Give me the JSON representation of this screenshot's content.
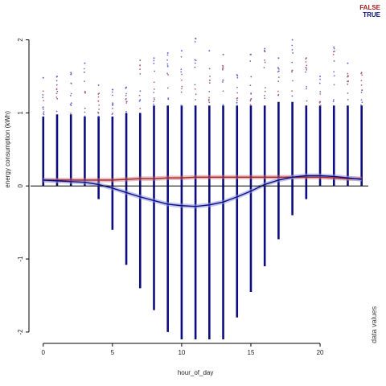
{
  "legend": [
    {
      "label": "FALSE",
      "color": "#a31f1f"
    },
    {
      "label": "TRUE",
      "color": "#0d0d80"
    }
  ],
  "side_label": "data values",
  "chart_data": {
    "type": "scatter",
    "title": "",
    "xlabel": "hour_of_day",
    "ylabel": "energy consumption (kWh)",
    "xlim": [
      -0.8,
      23.6
    ],
    "ylim": [
      -2.1,
      2.05
    ],
    "x_ticks": [
      0,
      5,
      10,
      15,
      20
    ],
    "y_ticks": [
      -2,
      -1,
      0,
      1,
      2
    ],
    "y_tick_labels": [
      "-2",
      "-1",
      "0",
      "1",
      "2"
    ],
    "reference_line_y": 0,
    "hour_ranges": {
      "hours": [
        0,
        1,
        2,
        3,
        4,
        5,
        6,
        7,
        8,
        9,
        10,
        11,
        12,
        13,
        14,
        15,
        16,
        17,
        18,
        19,
        20,
        21,
        22,
        23
      ],
      "min": [
        0.0,
        0.0,
        0.0,
        0.0,
        -0.18,
        -0.6,
        -1.08,
        -1.4,
        -1.7,
        -2.0,
        -2.1,
        -2.1,
        -2.1,
        -2.1,
        -1.8,
        -1.45,
        -1.1,
        -0.73,
        -0.4,
        -0.18,
        0.0,
        0.0,
        0.0,
        0.0
      ],
      "dense_max": [
        0.95,
        0.98,
        0.98,
        0.95,
        0.95,
        0.95,
        1.0,
        1.0,
        1.1,
        1.1,
        1.1,
        1.1,
        1.1,
        1.1,
        1.1,
        1.1,
        1.1,
        1.15,
        1.15,
        1.1,
        1.1,
        1.1,
        1.1,
        1.1
      ],
      "outlier_max": [
        1.48,
        1.5,
        1.55,
        1.68,
        1.38,
        1.32,
        1.35,
        1.72,
        1.75,
        1.82,
        1.85,
        2.02,
        1.85,
        1.8,
        1.52,
        1.8,
        1.88,
        1.75,
        2.0,
        1.75,
        1.5,
        1.9,
        1.68,
        1.55
      ]
    },
    "series": [
      {
        "name": "FALSE",
        "color": "#a31f1f",
        "x": [
          0,
          1,
          2,
          3,
          4,
          5,
          6,
          7,
          8,
          9,
          10,
          11,
          12,
          13,
          14,
          15,
          16,
          17,
          18,
          19,
          20,
          21,
          22,
          23
        ],
        "y": [
          0.08,
          0.08,
          0.08,
          0.08,
          0.08,
          0.08,
          0.09,
          0.1,
          0.1,
          0.11,
          0.11,
          0.12,
          0.12,
          0.12,
          0.12,
          0.12,
          0.12,
          0.12,
          0.12,
          0.12,
          0.12,
          0.11,
          0.1,
          0.1
        ],
        "band": 0.03
      },
      {
        "name": "TRUE",
        "color": "#0d0d80",
        "x": [
          0,
          1,
          2,
          3,
          4,
          5,
          6,
          7,
          8,
          9,
          10,
          11,
          12,
          13,
          14,
          15,
          16,
          17,
          18,
          19,
          20,
          21,
          22,
          23
        ],
        "y": [
          0.08,
          0.07,
          0.06,
          0.05,
          0.02,
          -0.03,
          -0.09,
          -0.15,
          -0.2,
          -0.25,
          -0.27,
          -0.28,
          -0.26,
          -0.22,
          -0.15,
          -0.07,
          0.02,
          0.08,
          0.12,
          0.14,
          0.14,
          0.13,
          0.11,
          0.09
        ],
        "band": 0.03
      }
    ]
  }
}
